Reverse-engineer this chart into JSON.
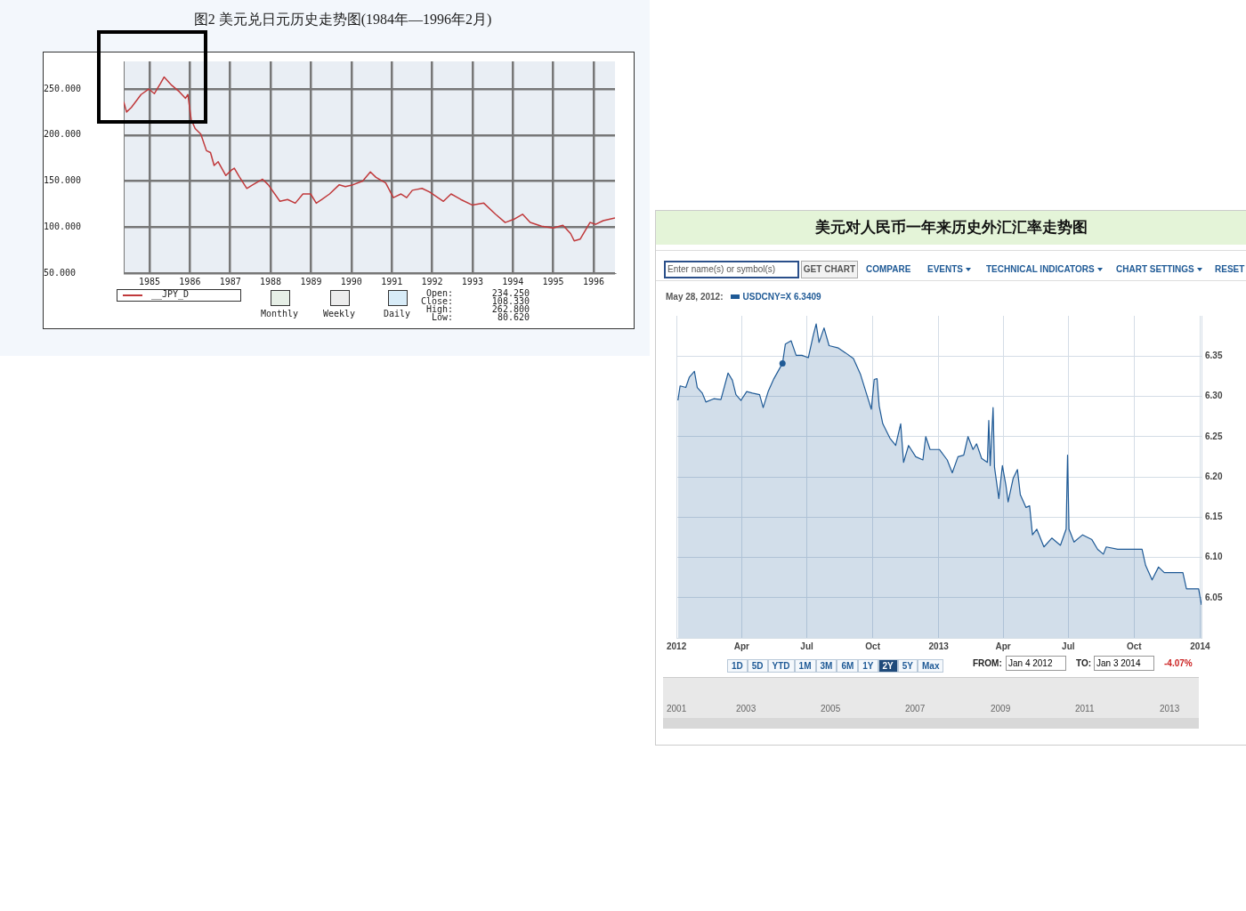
{
  "chart_data": [
    {
      "type": "line",
      "title": "图2 美元兑日元历史走势图(1984年—1996年2月)",
      "legend": "bottom left",
      "grid": true,
      "xlim": [
        1984.36,
        1996.53
      ],
      "xticks": [
        1985,
        1986,
        1987,
        1988,
        1989,
        1990,
        1991,
        1992,
        1993,
        1994,
        1995,
        1996
      ],
      "ylim": [
        50,
        280
      ],
      "yticks": [
        {
          "value": 50,
          "label": "50.000"
        },
        {
          "value": 100,
          "label": "100.000"
        },
        {
          "value": 150,
          "label": "150.000"
        },
        {
          "value": 200,
          "label": "200.000"
        },
        {
          "value": 250,
          "label": "250.000"
        }
      ],
      "series": [
        {
          "name": "__JPY_D",
          "color": "#c0393b",
          "x": [
            1984.36,
            1984.43,
            1984.55,
            1984.79,
            1984.98,
            1985.12,
            1985.27,
            1985.36,
            1985.55,
            1985.74,
            1985.89,
            1985.95,
            1986.03,
            1986.13,
            1986.27,
            1986.41,
            1986.51,
            1986.6,
            1986.7,
            1986.89,
            1987.03,
            1987.1,
            1987.22,
            1987.41,
            1987.56,
            1987.8,
            1987.94,
            1988.23,
            1988.42,
            1988.61,
            1988.8,
            1988.99,
            1989.13,
            1989.27,
            1989.46,
            1989.7,
            1989.85,
            1990.04,
            1990.28,
            1990.47,
            1990.61,
            1990.85,
            1991.04,
            1991.23,
            1991.37,
            1991.51,
            1991.75,
            1991.94,
            1992.28,
            1992.47,
            1992.71,
            1992.99,
            1993.28,
            1993.57,
            1993.81,
            1994.05,
            1994.24,
            1994.43,
            1994.71,
            1995.0,
            1995.24,
            1995.43,
            1995.52,
            1995.67,
            1995.91,
            1996.05,
            1996.24,
            1996.53
          ],
          "values": [
            236,
            225,
            230,
            244,
            250,
            245,
            256,
            263,
            254,
            247,
            240,
            244,
            217,
            207,
            201,
            183,
            181,
            167,
            171,
            156,
            162,
            164,
            155,
            142,
            146,
            152,
            146,
            128,
            130,
            126,
            136,
            136,
            126,
            130,
            136,
            146,
            144,
            146,
            150,
            160,
            154,
            148,
            132,
            136,
            132,
            140,
            142,
            138,
            128,
            136,
            130,
            124,
            126,
            114,
            105,
            109,
            114,
            105,
            101,
            99,
            102,
            93,
            85,
            87,
            105,
            103,
            107,
            110
          ]
        }
      ],
      "annotations": [
        "Monthly",
        "Weekly",
        "Daily",
        "Open:",
        "Close:",
        "High:",
        "Low:",
        "234.250",
        "108.330",
        "262.800",
        "80.620"
      ]
    },
    {
      "type": "area",
      "title": "美元对人民币一年来历史外汇汇率走势图",
      "legend": "top left",
      "grid": true,
      "xlim": [
        "2012-01-01",
        "2014-01-03"
      ],
      "xticks": [
        {
          "value": "2012-01-01",
          "label": "2012"
        },
        {
          "value": "2012-04-01",
          "label": "Apr"
        },
        {
          "value": "2012-07-01",
          "label": "Jul"
        },
        {
          "value": "2012-10-01",
          "label": "Oct"
        },
        {
          "value": "2013-01-01",
          "label": "2013"
        },
        {
          "value": "2013-04-01",
          "label": "Apr"
        },
        {
          "value": "2013-07-01",
          "label": "Jul"
        },
        {
          "value": "2013-10-01",
          "label": "Oct"
        },
        {
          "value": "2014-01-01",
          "label": "2014"
        }
      ],
      "ylim": [
        6.0,
        6.4
      ],
      "yticks": [
        {
          "value": 6.05,
          "label": "6.05"
        },
        {
          "value": 6.1,
          "label": "6.10"
        },
        {
          "value": 6.15,
          "label": "6.15"
        },
        {
          "value": 6.2,
          "label": "6.20"
        },
        {
          "value": 6.25,
          "label": "6.25"
        },
        {
          "value": 6.3,
          "label": "6.30"
        },
        {
          "value": 6.35,
          "label": "6.35"
        }
      ],
      "series": [
        {
          "name": "USDCNY=X 6.3409",
          "color": "#1f5a96",
          "x": [
            "2012-01-03",
            "2012-01-06",
            "2012-01-14",
            "2012-01-19",
            "2012-01-26",
            "2012-01-30",
            "2012-02-06",
            "2012-02-11",
            "2012-02-22",
            "2012-03-03",
            "2012-03-13",
            "2012-03-19",
            "2012-03-24",
            "2012-03-31",
            "2012-04-08",
            "2012-04-16",
            "2012-04-26",
            "2012-05-01",
            "2012-05-08",
            "2012-05-16",
            "2012-05-28",
            "2012-06-01",
            "2012-06-09",
            "2012-06-16",
            "2012-06-24",
            "2012-07-03",
            "2012-07-10",
            "2012-07-14",
            "2012-07-18",
            "2012-07-25",
            "2012-08-01",
            "2012-08-14",
            "2012-08-24",
            "2012-09-04",
            "2012-09-14",
            "2012-09-22",
            "2012-09-29",
            "2012-10-03",
            "2012-10-07",
            "2012-10-10",
            "2012-10-15",
            "2012-10-25",
            "2012-11-02",
            "2012-11-09",
            "2012-11-13",
            "2012-11-20",
            "2012-11-30",
            "2012-12-10",
            "2012-12-14",
            "2012-12-20",
            "2013-01-02",
            "2013-01-13",
            "2013-01-20",
            "2013-01-28",
            "2013-02-05",
            "2013-02-11",
            "2013-02-18",
            "2013-02-23",
            "2013-03-02",
            "2013-03-10",
            "2013-03-12",
            "2013-03-14",
            "2013-03-18",
            "2013-03-20",
            "2013-03-26",
            "2013-03-31",
            "2013-04-05",
            "2013-04-08",
            "2013-04-15",
            "2013-04-21",
            "2013-04-25",
            "2013-05-03",
            "2013-05-08",
            "2013-05-12",
            "2013-05-18",
            "2013-05-28",
            "2013-06-08",
            "2013-06-20",
            "2013-06-28",
            "2013-06-30",
            "2013-07-02",
            "2013-07-09",
            "2013-07-21",
            "2013-08-03",
            "2013-08-11",
            "2013-08-19",
            "2013-08-23",
            "2013-09-08",
            "2013-09-24",
            "2013-10-12",
            "2013-10-17",
            "2013-10-26",
            "2013-11-04",
            "2013-11-12",
            "2013-12-08",
            "2013-12-13",
            "2013-12-30",
            "2014-01-03"
          ],
          "values": [
            6.295,
            6.313,
            6.311,
            6.324,
            6.331,
            6.311,
            6.304,
            6.293,
            6.297,
            6.296,
            6.329,
            6.32,
            6.302,
            6.295,
            6.306,
            6.304,
            6.302,
            6.286,
            6.306,
            6.322,
            6.341,
            6.365,
            6.369,
            6.351,
            6.351,
            6.348,
            6.376,
            6.39,
            6.367,
            6.385,
            6.363,
            6.36,
            6.354,
            6.347,
            6.327,
            6.304,
            6.284,
            6.321,
            6.322,
            6.288,
            6.266,
            6.248,
            6.239,
            6.266,
            6.218,
            6.239,
            6.225,
            6.221,
            6.25,
            6.234,
            6.234,
            6.221,
            6.205,
            6.225,
            6.227,
            6.25,
            6.234,
            6.241,
            6.223,
            6.218,
            6.27,
            6.214,
            6.286,
            6.212,
            6.173,
            6.214,
            6.189,
            6.169,
            6.198,
            6.209,
            6.178,
            6.162,
            6.164,
            6.128,
            6.135,
            6.113,
            6.124,
            6.115,
            6.135,
            6.227,
            6.135,
            6.119,
            6.128,
            6.122,
            6.11,
            6.104,
            6.113,
            6.11,
            6.11,
            6.11,
            6.09,
            6.072,
            6.088,
            6.081,
            6.081,
            6.061,
            6.061,
            6.041
          ]
        },
        {
          "type": "scatter",
          "color": "#1f5a96",
          "marker": "circle",
          "x": [
            "2012-05-28"
          ],
          "values": [
            6.3409
          ]
        }
      ],
      "annotations": [
        "May 28, 2012:",
        "Enter name(s) or symbol(s)",
        "GET CHART",
        "COMPARE",
        "EVENTS",
        "TECHNICAL INDICATORS",
        "CHART SETTINGS",
        "RESET",
        "1D",
        "5D",
        "YTD",
        "1M",
        "3M",
        "6M",
        "1Y",
        "2Y",
        "5Y",
        "Max",
        "FROM:",
        "Jan 4 2012",
        "TO:",
        "Jan 3 2014",
        "-4.07%",
        "2001",
        "2003",
        "2005",
        "2007",
        "2009",
        "2011",
        "2013"
      ]
    }
  ]
}
